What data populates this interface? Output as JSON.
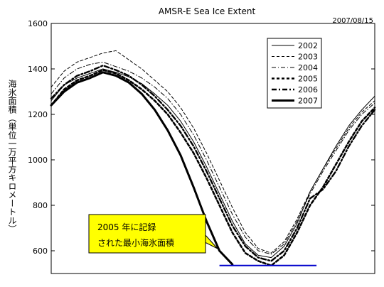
{
  "chart_data": {
    "type": "line",
    "title": "AMSR-E Sea Ice Extent",
    "date_label": "2007/08/15",
    "ylabel": "海氷面積（単位一万平方キロメートル）",
    "xlabel": "",
    "ylim": [
      500,
      1600
    ],
    "y_ticks": [
      600,
      800,
      1000,
      1200,
      1400,
      1600
    ],
    "x_note": "day index 0–100, no tick labels shown",
    "xlim": [
      0,
      100
    ],
    "grid": false,
    "legend_position": "top-right",
    "series": [
      {
        "name": "2002",
        "style": "solid-thin",
        "color": "#000000",
        "x": [
          0,
          4,
          8,
          12,
          16,
          20,
          24,
          28,
          32,
          36,
          40,
          44,
          48,
          52,
          56,
          60,
          64,
          68,
          72,
          76,
          80,
          84,
          88,
          92,
          96,
          100
        ],
        "y": [
          1260,
          1330,
          1360,
          1380,
          1400,
          1385,
          1365,
          1335,
          1290,
          1240,
          1170,
          1080,
          970,
          850,
          730,
          630,
          580,
          570,
          620,
          720,
          860,
          960,
          1060,
          1150,
          1220,
          1280
        ]
      },
      {
        "name": "2003",
        "style": "dashed",
        "color": "#000000",
        "x": [
          0,
          4,
          8,
          12,
          16,
          20,
          24,
          28,
          32,
          36,
          40,
          44,
          48,
          52,
          56,
          60,
          64,
          68,
          72,
          76,
          80,
          84,
          88,
          92,
          96,
          100
        ],
        "y": [
          1320,
          1390,
          1430,
          1450,
          1470,
          1480,
          1440,
          1400,
          1350,
          1300,
          1230,
          1140,
          1030,
          910,
          790,
          680,
          610,
          590,
          640,
          740,
          860,
          960,
          1050,
          1140,
          1210,
          1260
        ]
      },
      {
        "name": "2004",
        "style": "dash-dot-thin",
        "color": "#000000",
        "x": [
          0,
          4,
          8,
          12,
          16,
          20,
          24,
          28,
          32,
          36,
          40,
          44,
          48,
          52,
          56,
          60,
          64,
          68,
          72,
          76,
          80,
          84,
          88,
          92,
          96,
          100
        ],
        "y": [
          1290,
          1360,
          1400,
          1420,
          1430,
          1410,
          1390,
          1360,
          1320,
          1270,
          1200,
          1110,
          1000,
          880,
          760,
          660,
          600,
          585,
          630,
          730,
          850,
          950,
          1040,
          1130,
          1200,
          1250
        ]
      },
      {
        "name": "2005",
        "style": "dashed-bold",
        "color": "#000000",
        "x": [
          0,
          4,
          8,
          12,
          16,
          20,
          24,
          28,
          32,
          36,
          40,
          44,
          48,
          52,
          56,
          60,
          64,
          68,
          72,
          76,
          80,
          84,
          88,
          92,
          96,
          100
        ],
        "y": [
          1240,
          1310,
          1350,
          1370,
          1395,
          1380,
          1350,
          1310,
          1260,
          1200,
          1120,
          1030,
          920,
          800,
          680,
          590,
          555,
          535,
          580,
          680,
          800,
          880,
          980,
          1080,
          1170,
          1230
        ]
      },
      {
        "name": "2006",
        "style": "dash-dot-bold",
        "color": "#000000",
        "x": [
          0,
          4,
          8,
          12,
          16,
          20,
          24,
          28,
          32,
          36,
          40,
          44,
          48,
          52,
          56,
          60,
          64,
          68,
          72,
          76,
          80,
          84,
          88,
          92,
          96,
          100
        ],
        "y": [
          1270,
          1330,
          1370,
          1390,
          1415,
          1395,
          1370,
          1330,
          1280,
          1220,
          1150,
          1060,
          950,
          830,
          710,
          620,
          570,
          555,
          600,
          700,
          830,
          870,
          950,
          1060,
          1150,
          1220
        ]
      },
      {
        "name": "2007",
        "style": "solid-bold",
        "color": "#000000",
        "x": [
          0,
          4,
          8,
          12,
          16,
          20,
          24,
          28,
          32,
          36,
          40,
          44,
          48,
          52,
          56
        ],
        "y": [
          1240,
          1300,
          1340,
          1360,
          1385,
          1370,
          1340,
          1290,
          1220,
          1130,
          1020,
          880,
          730,
          600,
          540
        ]
      }
    ],
    "annotations": [
      {
        "type": "hline",
        "y": 535,
        "x": [
          52,
          82
        ],
        "color": "#0000cc",
        "label": "2005 年に記録\nされた最小海氷面積"
      }
    ]
  },
  "callout": {
    "line1": "2005 年に記録",
    "line2": "された最小海氷面積",
    "bg_color": "#ffff00",
    "border_color": "#000000"
  }
}
